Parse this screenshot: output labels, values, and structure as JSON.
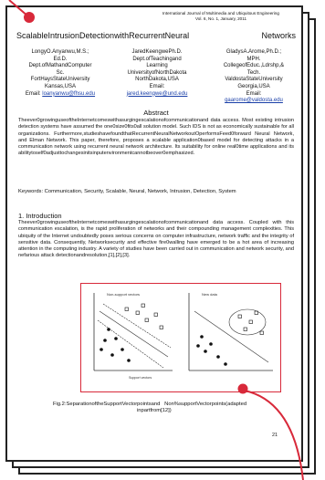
{
  "journal": {
    "line1": "International Journal of Multimedia and Ubiquitous Engineering",
    "line2": "Vol. 6, No. 1, January, 2011"
  },
  "paper": {
    "title_part1": "ScalableIntrusionDetectionwithRecurrentNeural",
    "title_part2": "Networks"
  },
  "authors": [
    {
      "name": "LongyO.Anyanwu,M.S.;",
      "degree": "Ed.D.",
      "dept": "Dept.ofMathandComputer",
      "dept2": "Sc.",
      "school": "FortHaysStateUniversity",
      "city": "Kansas,USA",
      "email_label": "Email:",
      "email": "loanyanwu@fhsu.edu"
    },
    {
      "name": "JaredKeengwePh.D.",
      "degree": "Dept.ofTeachingand",
      "dept": "Learning",
      "dept2": "UniversityofNorthDakota",
      "school": "NorthDakota,USA",
      "city": "Email:",
      "email_label": "",
      "email": "jared.keengwe@und.edu"
    },
    {
      "name": "GladysA.Arome,Ph.D.;",
      "degree": "MPH.",
      "dept": "CollegeofEduc.,Ldrshp,&",
      "dept2": "Tech.",
      "school": "ValdostaStateUniversity",
      "city": "Georgia,USA",
      "email_label": "Email:",
      "email": "gaarome@valdosta.edu"
    }
  ],
  "abstract": {
    "heading": "Abstract",
    "body": "Theever0growinguseoftheInternetcomeswithasurgingescalationofcommunicationand data access. Most existing intrusion detection systems have assumed the one0size0fits0all solution model. Such IDS is not as economically sustainable for all organizations. Furthermore,studieshavefoundthatRecurrentNeuralNetworkoutOperformsFeed0forward Neural Network, and Elman Network. This paper, therefore, proposes a scalable application0based model for detecting attacks in a communication network using recurrent neural network architecture. Its suitability for online real0time applications and its abilitytoself0adjusttochangesinitsinputenvironmentcannotbeover0emphasized."
  },
  "keywords": "Keywords: Communication, Security, Scalable, Neural, Network, Intrusion, Detection, System",
  "introduction": {
    "heading": "1. Introduction",
    "body": "Theever0growinguseoftheInternetcomeswithasurgingescalationofcommunicationand data access. Coupled with this communication escalation, is the rapid proliferation of networks and their compounding management complexities. This ubiquity of the Internet undoubtedly poses serious concerns on computer infrastructure, network traffic and the integrity of sensitive data. Consequently, Networksecurity and effective fire0walling have emerged to be a hot area of increasing attention in the computing industry. A variety of studies have been carried out in communication and network security, and nefarious attack detectionandresolution,[1],[2],[3]."
  },
  "figure": {
    "left_plot_label": "Non-support vectors",
    "left_plot_sublabel": "Support vectors",
    "right_plot_label": "New data"
  },
  "caption": {
    "part1": "Fig.2:SeparationoftheSupportVectorpointsand",
    "part2": "Non%supportVectorpoints(adapted",
    "part3": "inpartfrom[12])"
  },
  "page_number": "21",
  "colors": {
    "figure_border": "#d8293a",
    "callout_line": "#d8293a",
    "link": "#1a3fa8"
  }
}
